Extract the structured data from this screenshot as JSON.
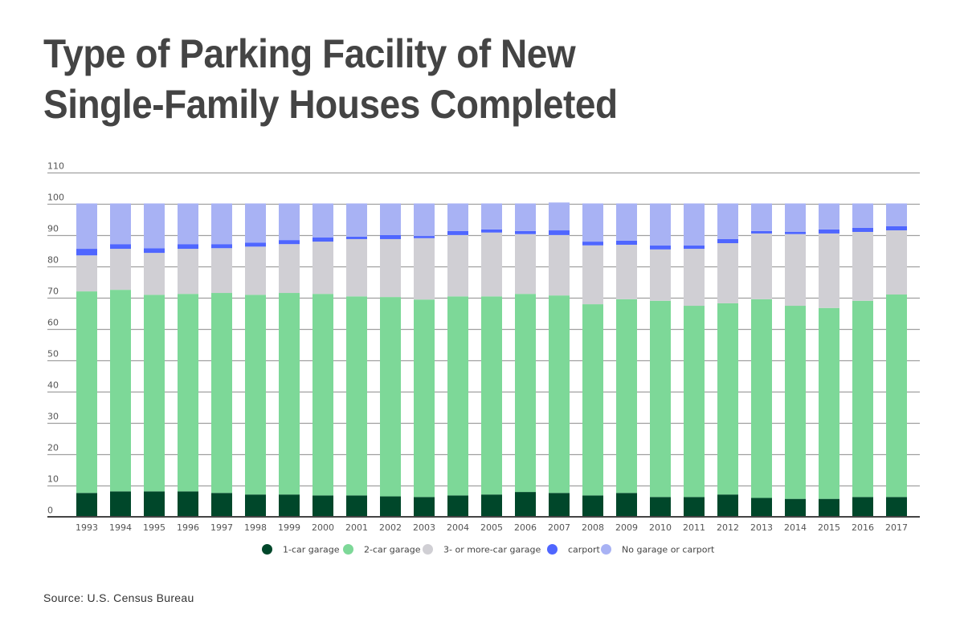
{
  "chart_data": {
    "type": "bar",
    "stacked": true,
    "title": "Type of Parking Facility of New Single-Family Houses Completed",
    "title_lines": [
      "Type of Parking Facility of New",
      "Single-Family Houses Completed"
    ],
    "xlabel": "",
    "ylabel": "",
    "ylim": [
      0,
      110
    ],
    "yticks": [
      0,
      10,
      20,
      30,
      40,
      50,
      60,
      70,
      80,
      90,
      100,
      110
    ],
    "grid": true,
    "legend_position": "bottom-center",
    "categories": [
      "1993",
      "1994",
      "1995",
      "1996",
      "1997",
      "1998",
      "1999",
      "2000",
      "2001",
      "2002",
      "2003",
      "2004",
      "2005",
      "2006",
      "2007",
      "2008",
      "2009",
      "2010",
      "2011",
      "2012",
      "2013",
      "2014",
      "2015",
      "2016",
      "2017"
    ],
    "series": [
      {
        "name": "1-car garage",
        "color": "#00472a",
        "values": [
          7.5,
          8.0,
          8.0,
          8.0,
          7.5,
          7.0,
          7.0,
          6.7,
          6.7,
          6.4,
          6.2,
          6.7,
          7.0,
          7.8,
          7.5,
          6.7,
          7.5,
          6.2,
          6.2,
          7.0,
          5.9,
          5.6,
          5.6,
          6.2,
          6.2
        ]
      },
      {
        "name": "2-car garage",
        "color": "#7dd898",
        "values": [
          64.4,
          64.4,
          62.8,
          63.1,
          63.9,
          63.8,
          64.4,
          64.4,
          63.6,
          63.7,
          63.1,
          63.6,
          63.3,
          63.3,
          63.1,
          61.1,
          61.9,
          62.7,
          61.1,
          61.1,
          63.5,
          61.7,
          61.0,
          62.7,
          64.7
        ]
      },
      {
        "name": "3- or more-car garage",
        "color": "#d0cfd4",
        "values": [
          11.5,
          13.1,
          13.4,
          14.4,
          14.3,
          15.4,
          15.6,
          16.7,
          18.3,
          18.5,
          19.6,
          19.6,
          20.4,
          19.1,
          19.3,
          18.8,
          17.4,
          16.4,
          18.2,
          19.2,
          21.0,
          22.9,
          23.8,
          22.0,
          20.5
        ]
      },
      {
        "name": "carport",
        "color": "#4f66ff",
        "values": [
          2.1,
          1.5,
          1.5,
          1.5,
          1.3,
          1.3,
          1.3,
          1.3,
          0.8,
          1.3,
          0.7,
          1.3,
          1.0,
          1.0,
          1.5,
          1.2,
          1.3,
          1.3,
          1.1,
          1.3,
          0.8,
          0.7,
          1.3,
          1.3,
          1.3
        ]
      },
      {
        "name": "No garage or carport",
        "color": "#a8b2f4",
        "values": [
          14.5,
          13.0,
          14.3,
          13.0,
          13.0,
          12.5,
          11.7,
          10.9,
          10.6,
          10.1,
          10.4,
          8.8,
          8.3,
          8.8,
          8.9,
          12.2,
          11.9,
          13.4,
          13.4,
          11.4,
          8.8,
          9.1,
          8.3,
          7.8,
          7.3
        ]
      }
    ],
    "source": "Source: U.S. Census Bureau"
  }
}
